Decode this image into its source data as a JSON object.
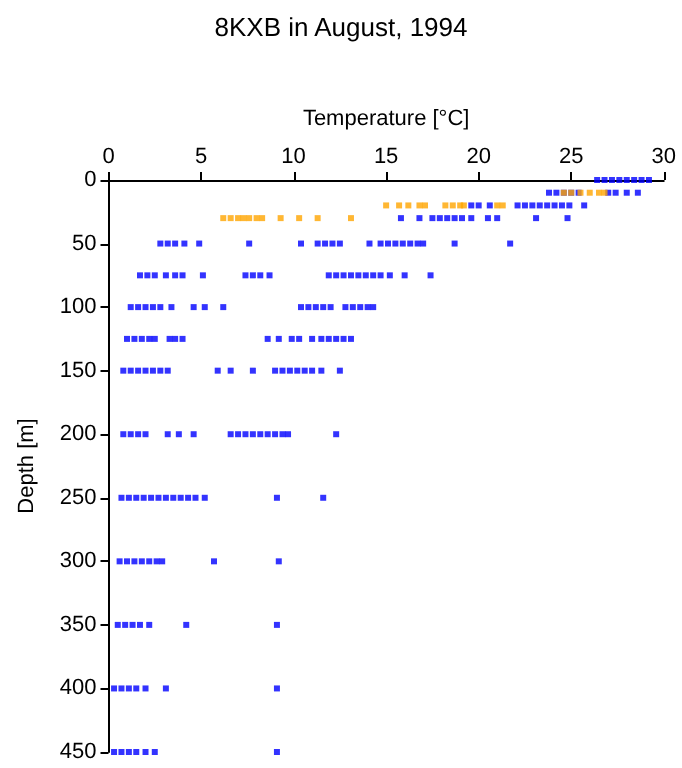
{
  "chart_data": {
    "type": "scatter",
    "title": "8KXB in August, 1994",
    "xlabel": "Temperature [°C]",
    "ylabel": "Depth [m]",
    "xlim": [
      0,
      30
    ],
    "xticks": [
      0,
      5,
      10,
      15,
      20,
      25,
      30
    ],
    "ylim": [
      450,
      0
    ],
    "yticks": [
      0,
      50,
      100,
      150,
      200,
      250,
      300,
      350,
      400,
      450
    ],
    "grid": false,
    "marker": "square",
    "series": [
      {
        "color": "#0000ff",
        "x": [
          26.4,
          26.8,
          27.2,
          27.6,
          28.0,
          28.4,
          28.8,
          29.2,
          23.8,
          24.2,
          24.6,
          25.0,
          25.4,
          27.0,
          27.4,
          28.0,
          28.6,
          19.6,
          20.0,
          20.6,
          22.1,
          22.5,
          22.9,
          23.3,
          23.7,
          24.1,
          24.5,
          24.9,
          25.7,
          15.8,
          16.8,
          17.5,
          17.9,
          18.3,
          18.7,
          19.1,
          19.6,
          20.5,
          21.0,
          23.1,
          24.8,
          2.8,
          3.2,
          3.6,
          4.1,
          4.9,
          7.6,
          10.4,
          11.3,
          11.7,
          12.1,
          12.5,
          14.1,
          14.7,
          15.1,
          15.5,
          15.9,
          16.3,
          16.7,
          17.0,
          18.7,
          21.7,
          1.7,
          2.1,
          2.5,
          3.1,
          3.6,
          4.0,
          5.1,
          7.4,
          7.8,
          8.2,
          8.7,
          11.9,
          12.3,
          12.7,
          13.1,
          13.5,
          13.9,
          14.3,
          14.7,
          15.2,
          16.0,
          17.4,
          1.2,
          1.6,
          2.0,
          2.4,
          2.8,
          3.4,
          4.6,
          5.2,
          6.2,
          10.4,
          10.8,
          11.2,
          11.6,
          12.0,
          12.8,
          13.2,
          13.6,
          14.0,
          14.3,
          1.0,
          1.4,
          1.8,
          2.2,
          2.5,
          3.3,
          3.6,
          4.0,
          8.6,
          9.2,
          9.9,
          10.3,
          11.0,
          11.5,
          11.9,
          12.3,
          12.7,
          13.1,
          0.8,
          1.2,
          1.6,
          2.0,
          2.4,
          2.8,
          3.2,
          5.9,
          6.6,
          7.8,
          9.0,
          9.4,
          9.8,
          10.2,
          10.6,
          11.0,
          11.5,
          12.5,
          0.8,
          1.2,
          1.6,
          2.0,
          3.2,
          3.8,
          4.6,
          6.6,
          7.0,
          7.4,
          7.8,
          8.2,
          8.6,
          9.0,
          9.4,
          9.7,
          12.3,
          0.7,
          1.1,
          1.5,
          1.9,
          2.3,
          2.7,
          3.1,
          3.5,
          3.9,
          4.3,
          4.7,
          5.2,
          9.1,
          11.6,
          0.6,
          1.0,
          1.4,
          1.8,
          2.2,
          2.6,
          2.9,
          5.7,
          9.2,
          0.5,
          0.9,
          1.3,
          1.7,
          2.2,
          4.2,
          9.1,
          0.3,
          0.7,
          1.1,
          1.5,
          2.0,
          3.1,
          9.1,
          0.3,
          0.7,
          1.1,
          1.5,
          2.0,
          2.5,
          9.1
        ],
        "values": [
          0,
          0,
          0,
          0,
          0,
          0,
          0,
          0,
          10,
          10,
          10,
          10,
          10,
          10,
          10,
          10,
          10,
          20,
          20,
          20,
          20,
          20,
          20,
          20,
          20,
          20,
          20,
          20,
          20,
          30,
          30,
          30,
          30,
          30,
          30,
          30,
          30,
          30,
          30,
          30,
          30,
          50,
          50,
          50,
          50,
          50,
          50,
          50,
          50,
          50,
          50,
          50,
          50,
          50,
          50,
          50,
          50,
          50,
          50,
          50,
          50,
          50,
          75,
          75,
          75,
          75,
          75,
          75,
          75,
          75,
          75,
          75,
          75,
          75,
          75,
          75,
          75,
          75,
          75,
          75,
          75,
          75,
          75,
          75,
          100,
          100,
          100,
          100,
          100,
          100,
          100,
          100,
          100,
          100,
          100,
          100,
          100,
          100,
          100,
          100,
          100,
          100,
          100,
          125,
          125,
          125,
          125,
          125,
          125,
          125,
          125,
          125,
          125,
          125,
          125,
          125,
          125,
          125,
          125,
          125,
          125,
          150,
          150,
          150,
          150,
          150,
          150,
          150,
          150,
          150,
          150,
          150,
          150,
          150,
          150,
          150,
          150,
          150,
          150,
          200,
          200,
          200,
          200,
          200,
          200,
          200,
          200,
          200,
          200,
          200,
          200,
          200,
          200,
          200,
          200,
          200,
          250,
          250,
          250,
          250,
          250,
          250,
          250,
          250,
          250,
          250,
          250,
          250,
          250,
          250,
          300,
          300,
          300,
          300,
          300,
          300,
          300,
          300,
          300,
          350,
          350,
          350,
          350,
          350,
          350,
          350,
          400,
          400,
          400,
          400,
          400,
          400,
          400,
          450,
          450,
          450,
          450,
          450,
          450,
          450
        ]
      },
      {
        "color": "#ffa500",
        "x": [
          24.6,
          25.0,
          25.5,
          26.0,
          26.5,
          26.8,
          15.0,
          15.7,
          16.2,
          16.8,
          17.1,
          18.2,
          18.6,
          19.0,
          19.2,
          21.0,
          21.3,
          6.2,
          6.6,
          7.0,
          7.3,
          7.6,
          8.0,
          8.3,
          9.3,
          10.3,
          11.3,
          13.1
        ],
        "values": [
          10,
          10,
          10,
          10,
          10,
          10,
          20,
          20,
          20,
          20,
          20,
          20,
          20,
          20,
          20,
          20,
          20,
          30,
          30,
          30,
          30,
          30,
          30,
          30,
          30,
          30,
          30,
          30
        ]
      }
    ]
  }
}
